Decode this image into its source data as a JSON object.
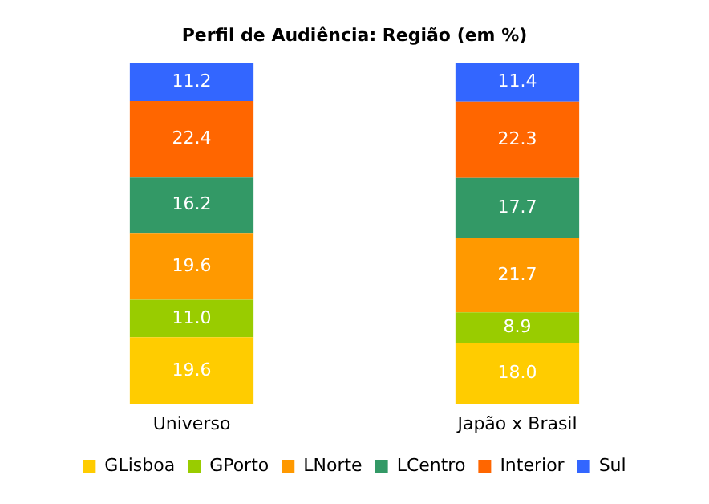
{
  "chart_data": {
    "type": "bar",
    "title": "Perfil de Audiência: Região (em %)",
    "categories": [
      "Universo",
      "Japão x Brasil"
    ],
    "stacked": true,
    "tick_labels": "x",
    "grid": false,
    "legend": "bottom",
    "series": [
      {
        "name": "GLisboa",
        "color": "#ffcc00",
        "values": [
          19.6,
          18.0
        ],
        "value_labels": [
          "19.6",
          "18.0"
        ]
      },
      {
        "name": "GPorto",
        "color": "#99cc00",
        "values": [
          11.0,
          8.9
        ],
        "value_labels": [
          "11.0",
          "8.9"
        ]
      },
      {
        "name": "LNorte",
        "color": "#ff9900",
        "values": [
          19.6,
          21.7
        ],
        "value_labels": [
          "19.6",
          "21.7"
        ]
      },
      {
        "name": "LCentro",
        "color": "#339966",
        "values": [
          16.2,
          17.7
        ],
        "value_labels": [
          "16.2",
          "17.7"
        ]
      },
      {
        "name": "Interior",
        "color": "#ff6600",
        "values": [
          22.4,
          22.3
        ],
        "value_labels": [
          "22.4",
          "22.3"
        ]
      },
      {
        "name": "Sul",
        "color": "#3366ff",
        "values": [
          11.2,
          11.4
        ],
        "value_labels": [
          "11.2",
          "11.4"
        ]
      }
    ]
  }
}
